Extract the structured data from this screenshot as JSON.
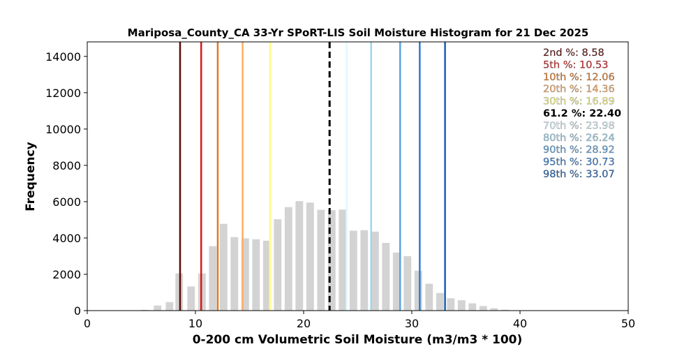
{
  "chart_data": {
    "type": "bar",
    "title": "Mariposa_County_CA 33-Yr SPoRT-LIS Soil Moisture Histogram for 21 Dec 2025",
    "xlabel": "0-200 cm Volumetric Soil Moisture (m3/m3 * 100)",
    "ylabel": "Frequency",
    "xlim": [
      0,
      50
    ],
    "ylim": [
      0,
      14800
    ],
    "xticks": [
      0,
      10,
      20,
      30,
      40,
      50
    ],
    "yticks": [
      0,
      2000,
      4000,
      6000,
      8000,
      10000,
      12000,
      14000
    ],
    "bar_color": "#d3d3d3",
    "bins": [
      {
        "x": 5.3,
        "value": 40
      },
      {
        "x": 6.5,
        "value": 280
      },
      {
        "x": 7.6,
        "value": 470
      },
      {
        "x": 8.5,
        "value": 2050
      },
      {
        "x": 9.6,
        "value": 1330
      },
      {
        "x": 10.6,
        "value": 2050
      },
      {
        "x": 11.6,
        "value": 3550
      },
      {
        "x": 12.6,
        "value": 4780
      },
      {
        "x": 13.6,
        "value": 4050
      },
      {
        "x": 14.6,
        "value": 3980
      },
      {
        "x": 15.6,
        "value": 3930
      },
      {
        "x": 16.6,
        "value": 3850
      },
      {
        "x": 17.6,
        "value": 5030
      },
      {
        "x": 18.6,
        "value": 5700
      },
      {
        "x": 19.6,
        "value": 6030
      },
      {
        "x": 20.6,
        "value": 5950
      },
      {
        "x": 21.6,
        "value": 5550
      },
      {
        "x": 22.6,
        "value": 5530
      },
      {
        "x": 23.6,
        "value": 5560
      },
      {
        "x": 24.6,
        "value": 4400
      },
      {
        "x": 25.6,
        "value": 4430
      },
      {
        "x": 26.6,
        "value": 4350
      },
      {
        "x": 27.6,
        "value": 3730
      },
      {
        "x": 28.6,
        "value": 3200
      },
      {
        "x": 29.6,
        "value": 3000
      },
      {
        "x": 30.6,
        "value": 2200
      },
      {
        "x": 31.6,
        "value": 1480
      },
      {
        "x": 32.6,
        "value": 970
      },
      {
        "x": 33.6,
        "value": 680
      },
      {
        "x": 34.6,
        "value": 570
      },
      {
        "x": 35.6,
        "value": 400
      },
      {
        "x": 36.6,
        "value": 250
      },
      {
        "x": 37.6,
        "value": 130
      },
      {
        "x": 38.6,
        "value": 50
      }
    ],
    "percentiles": [
      {
        "label": "2nd %: 8.58",
        "value": 8.58,
        "color": "#5c0a0a",
        "dashed": false
      },
      {
        "label": "5th %: 10.53",
        "value": 10.53,
        "color": "#d7191c",
        "dashed": false
      },
      {
        "label": "10th %: 12.06",
        "value": 12.06,
        "color": "#e6781e",
        "dashed": false
      },
      {
        "label": "20th %: 14.36",
        "value": 14.36,
        "color": "#fdae61",
        "dashed": false
      },
      {
        "label": "30th %: 16.89",
        "value": 16.89,
        "color": "#ffff80",
        "dashed": false
      },
      {
        "label": "61.2 %: 22.40",
        "value": 22.4,
        "color": "#000000",
        "dashed": true
      },
      {
        "label": "70th %: 23.98",
        "value": 23.98,
        "color": "#e0f8ff",
        "dashed": false
      },
      {
        "label": "80th %: 26.24",
        "value": 26.24,
        "color": "#9fd5ef",
        "dashed": false
      },
      {
        "label": "90th %: 28.92",
        "value": 28.92,
        "color": "#5ba3e0",
        "dashed": false
      },
      {
        "label": "95th %: 30.73",
        "value": 30.73,
        "color": "#2c7bd6",
        "dashed": false
      },
      {
        "label": "98th %: 33.07",
        "value": 33.07,
        "color": "#1a5fb4",
        "dashed": false
      }
    ]
  }
}
